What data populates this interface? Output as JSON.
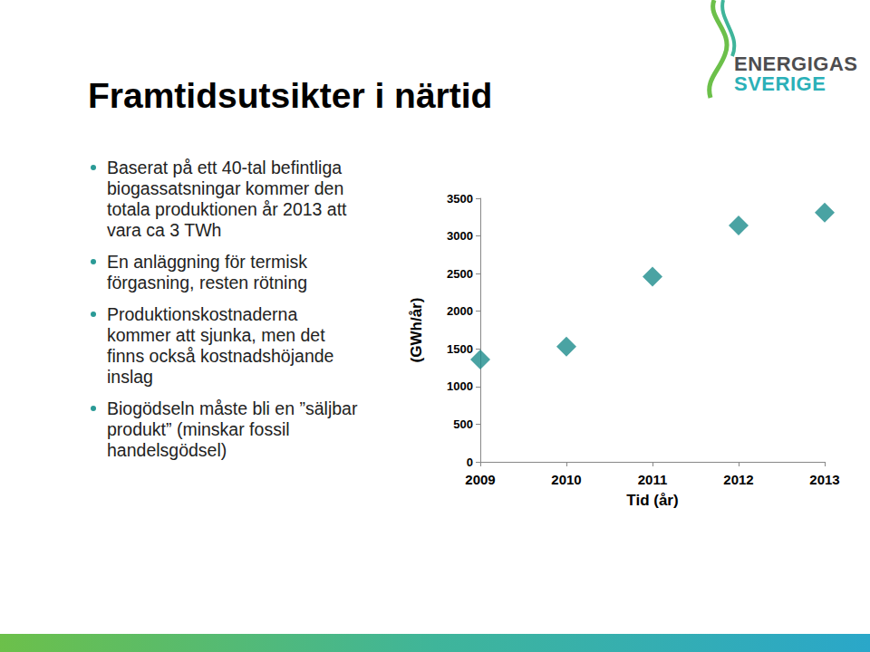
{
  "chart_data": {
    "type": "scatter",
    "categories": [
      "2009",
      "2010",
      "2011",
      "2012",
      "2013"
    ],
    "values": [
      1360,
      1530,
      2460,
      3140,
      3310
    ],
    "color": "#1d8c8c",
    "marker": "diamond",
    "x_label": "Tid (år)",
    "y_label": "(GWh/år)",
    "ylim": [
      0,
      3500
    ],
    "yticks": [
      0,
      500,
      1000,
      1500,
      2000,
      2500,
      3000,
      3500
    ],
    "grid": false
  },
  "slide": {
    "title": "Framtidsutsikter i närtid",
    "bullets": [
      "Baserat på ett 40-tal befintliga biogassatsningar kommer den totala produktionen år 2013 att vara ca 3 TWh",
      "En anläggning för termisk förgasning, resten rötning",
      "Produktionskostnaderna kommer att sjunka, men det finns också kostnadshöjande inslag",
      "Biogödseln måste bli en ”säljbar produkt” (minskar fossil handelsgödsel)"
    ],
    "logo": [
      "ENERGIGAS",
      "SVERIGE"
    ]
  }
}
